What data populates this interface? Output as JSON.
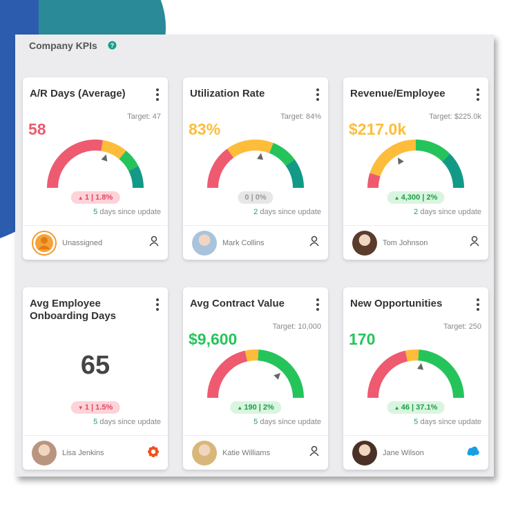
{
  "header": {
    "title": "Company KPIs"
  },
  "cards": [
    {
      "title": "A/R Days (Average)",
      "target": "Target: 47",
      "value": "58",
      "delta": "1 | 1.8%",
      "days": "5",
      "days_label": "days since update",
      "owner": "Unassigned"
    },
    {
      "title": "Utilization Rate",
      "target": "Target: 84%",
      "value": "83%",
      "delta": "0 | 0%",
      "days": "2",
      "days_label": "days since update",
      "owner": "Mark Collins"
    },
    {
      "title": "Revenue/Employee",
      "target": "Target: $225.0k",
      "value": "$217.0k",
      "delta": "4,300 | 2%",
      "days": "2",
      "days_label": "days since update",
      "owner": "Tom Johnson"
    },
    {
      "title": "Avg Employee Onboarding Days",
      "value": "65",
      "delta": "1 | 1.5%",
      "days": "5",
      "days_label": "days since update",
      "owner": "Lisa Jenkins"
    },
    {
      "title": "Avg Contract Value",
      "target": "Target: 10,000",
      "value": "$9,600",
      "delta": "190 | 2%",
      "days": "5",
      "days_label": "days since update",
      "owner": "Katie Williams"
    },
    {
      "title": "New Opportunities",
      "target": "Target: 250",
      "value": "170",
      "delta": "46 | 37.1%",
      "days": "5",
      "days_label": "days since update",
      "owner": "Jane Wilson"
    }
  ]
}
